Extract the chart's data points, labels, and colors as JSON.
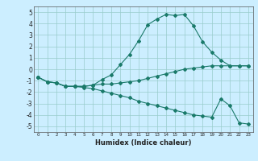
{
  "xlabel": "Humidex (Indice chaleur)",
  "bg_color": "#cceeff",
  "line_color": "#1a7a6a",
  "grid_color": "#99cccc",
  "xlim": [
    -0.5,
    23.5
  ],
  "ylim": [
    -5.5,
    5.5
  ],
  "xticks": [
    0,
    1,
    2,
    3,
    4,
    5,
    6,
    7,
    8,
    9,
    10,
    11,
    12,
    13,
    14,
    15,
    16,
    17,
    18,
    19,
    20,
    21,
    22,
    23
  ],
  "yticks": [
    -5,
    -4,
    -3,
    -2,
    -1,
    0,
    1,
    2,
    3,
    4,
    5
  ],
  "line1_x": [
    0,
    1,
    2,
    3,
    4,
    5,
    6,
    7,
    8,
    9,
    10,
    11,
    12,
    13,
    14,
    15,
    16,
    17,
    18,
    19,
    20,
    21,
    22,
    23
  ],
  "line1_y": [
    -0.7,
    -1.1,
    -1.2,
    -1.5,
    -1.5,
    -1.5,
    -1.4,
    -0.9,
    -0.5,
    0.4,
    1.3,
    2.5,
    3.9,
    4.4,
    4.8,
    4.7,
    4.8,
    3.8,
    2.4,
    1.5,
    0.8,
    0.3,
    0.3,
    0.3
  ],
  "line2_x": [
    0,
    1,
    2,
    3,
    4,
    5,
    6,
    7,
    8,
    9,
    10,
    11,
    12,
    13,
    14,
    15,
    16,
    17,
    18,
    19,
    20,
    21,
    22,
    23
  ],
  "line2_y": [
    -0.7,
    -1.1,
    -1.2,
    -1.5,
    -1.5,
    -1.5,
    -1.4,
    -1.3,
    -1.3,
    -1.2,
    -1.1,
    -1.0,
    -0.8,
    -0.6,
    -0.4,
    -0.2,
    0.0,
    0.1,
    0.2,
    0.3,
    0.3,
    0.3,
    0.3,
    0.3
  ],
  "line3_x": [
    0,
    1,
    2,
    3,
    4,
    5,
    6,
    7,
    8,
    9,
    10,
    11,
    12,
    13,
    14,
    15,
    16,
    17,
    18,
    19,
    20,
    21,
    22,
    23
  ],
  "line3_y": [
    -0.7,
    -1.1,
    -1.2,
    -1.5,
    -1.5,
    -1.6,
    -1.7,
    -1.9,
    -2.1,
    -2.3,
    -2.5,
    -2.8,
    -3.0,
    -3.2,
    -3.4,
    -3.6,
    -3.8,
    -4.0,
    -4.1,
    -4.2,
    -2.6,
    -3.2,
    -4.7,
    -4.8
  ],
  "xlabel_fontsize": 6.0,
  "tick_fontsize_x": 4.0,
  "tick_fontsize_y": 5.5,
  "linewidth": 0.8,
  "markersize": 2.0
}
